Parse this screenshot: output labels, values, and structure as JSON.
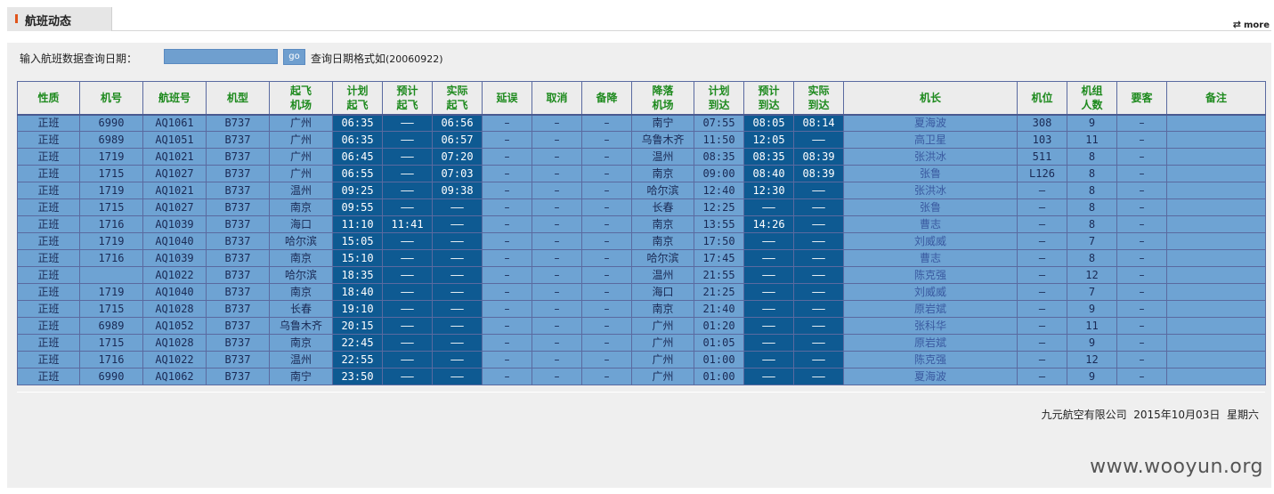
{
  "header": {
    "title": "航班动态",
    "more_label": "more",
    "more_icon": "refresh-arrows-icon"
  },
  "query": {
    "label": "输入航班数据查询日期：",
    "input_value": "",
    "go_label": "go",
    "hint_prefix": "查询日期格式如",
    "hint_example": "(20060922)"
  },
  "table": {
    "columns": [
      "性质",
      "机号",
      "航班号",
      "机型",
      "起飞\n机场",
      "计划\n起飞",
      "预计\n起飞",
      "实际\n起飞",
      "延误",
      "取消",
      "备降",
      "降落\n机场",
      "计划\n到达",
      "预计\n到达",
      "实际\n到达",
      "机长",
      "机位",
      "机组\n人数",
      "要客",
      "备注"
    ],
    "rows": [
      [
        "正班",
        "6990",
        "AQ1061",
        "B737",
        "广州",
        "06:35",
        "——",
        "06:56",
        "–",
        "–",
        "–",
        "南宁",
        "07:55",
        "08:05",
        "08:14",
        "夏海波",
        "308",
        "9",
        "–",
        ""
      ],
      [
        "正班",
        "6989",
        "AQ1051",
        "B737",
        "广州",
        "06:35",
        "——",
        "06:57",
        "–",
        "–",
        "–",
        "乌鲁木齐",
        "11:50",
        "12:05",
        "——",
        "高卫星",
        "103",
        "11",
        "–",
        ""
      ],
      [
        "正班",
        "1719",
        "AQ1021",
        "B737",
        "广州",
        "06:45",
        "——",
        "07:20",
        "–",
        "–",
        "–",
        "温州",
        "08:35",
        "08:35",
        "08:39",
        "张洪冰",
        "511",
        "8",
        "–",
        ""
      ],
      [
        "正班",
        "1715",
        "AQ1027",
        "B737",
        "广州",
        "06:55",
        "——",
        "07:03",
        "–",
        "–",
        "–",
        "南京",
        "09:00",
        "08:40",
        "08:39",
        "张鲁",
        "L126",
        "8",
        "–",
        ""
      ],
      [
        "正班",
        "1719",
        "AQ1021",
        "B737",
        "温州",
        "09:25",
        "——",
        "09:38",
        "–",
        "–",
        "–",
        "哈尔滨",
        "12:40",
        "12:30",
        "——",
        "张洪冰",
        "–",
        "8",
        "–",
        ""
      ],
      [
        "正班",
        "1715",
        "AQ1027",
        "B737",
        "南京",
        "09:55",
        "——",
        "——",
        "–",
        "–",
        "–",
        "长春",
        "12:25",
        "——",
        "——",
        "张鲁",
        "–",
        "8",
        "–",
        ""
      ],
      [
        "正班",
        "1716",
        "AQ1039",
        "B737",
        "海口",
        "11:10",
        "11:41",
        "——",
        "–",
        "–",
        "–",
        "南京",
        "13:55",
        "14:26",
        "——",
        "曹志",
        "–",
        "8",
        "–",
        ""
      ],
      [
        "正班",
        "1719",
        "AQ1040",
        "B737",
        "哈尔滨",
        "15:05",
        "——",
        "——",
        "–",
        "–",
        "–",
        "南京",
        "17:50",
        "——",
        "——",
        "刘威威",
        "–",
        "7",
        "–",
        ""
      ],
      [
        "正班",
        "1716",
        "AQ1039",
        "B737",
        "南京",
        "15:10",
        "——",
        "——",
        "–",
        "–",
        "–",
        "哈尔滨",
        "17:45",
        "——",
        "——",
        "曹志",
        "–",
        "8",
        "–",
        ""
      ],
      [
        "正班",
        "",
        "AQ1022",
        "B737",
        "哈尔滨",
        "18:35",
        "——",
        "——",
        "–",
        "–",
        "–",
        "温州",
        "21:55",
        "——",
        "——",
        "陈克强",
        "–",
        "12",
        "–",
        ""
      ],
      [
        "正班",
        "1719",
        "AQ1040",
        "B737",
        "南京",
        "18:40",
        "——",
        "——",
        "–",
        "–",
        "–",
        "海口",
        "21:25",
        "——",
        "——",
        "刘威威",
        "–",
        "7",
        "–",
        ""
      ],
      [
        "正班",
        "1715",
        "AQ1028",
        "B737",
        "长春",
        "19:10",
        "——",
        "——",
        "–",
        "–",
        "–",
        "南京",
        "21:40",
        "——",
        "——",
        "原岩斌",
        "–",
        "9",
        "–",
        ""
      ],
      [
        "正班",
        "6989",
        "AQ1052",
        "B737",
        "乌鲁木齐",
        "20:15",
        "——",
        "——",
        "–",
        "–",
        "–",
        "广州",
        "01:20",
        "——",
        "——",
        "张科华",
        "–",
        "11",
        "–",
        ""
      ],
      [
        "正班",
        "1715",
        "AQ1028",
        "B737",
        "南京",
        "22:45",
        "——",
        "——",
        "–",
        "–",
        "–",
        "广州",
        "01:05",
        "——",
        "——",
        "原岩斌",
        "–",
        "9",
        "–",
        ""
      ],
      [
        "正班",
        "1716",
        "AQ1022",
        "B737",
        "温州",
        "22:55",
        "——",
        "——",
        "–",
        "–",
        "–",
        "广州",
        "01:00",
        "——",
        "——",
        "陈克强",
        "–",
        "12",
        "–",
        ""
      ],
      [
        "正班",
        "6990",
        "AQ1062",
        "B737",
        "南宁",
        "23:50",
        "——",
        "——",
        "–",
        "–",
        "–",
        "广州",
        "01:00",
        "——",
        "——",
        "夏海波",
        "–",
        "9",
        "–",
        ""
      ]
    ]
  },
  "footer": {
    "company": "九元航空有限公司",
    "date": "2015年10月03日",
    "weekday": "星期六"
  },
  "watermark": "www.wooyun.org",
  "colors": {
    "row_bg": "#6ea3d3",
    "time_col_bg": "#0e5a92",
    "header_text": "#1e8a1e",
    "accent_mark": "#e0551c"
  }
}
